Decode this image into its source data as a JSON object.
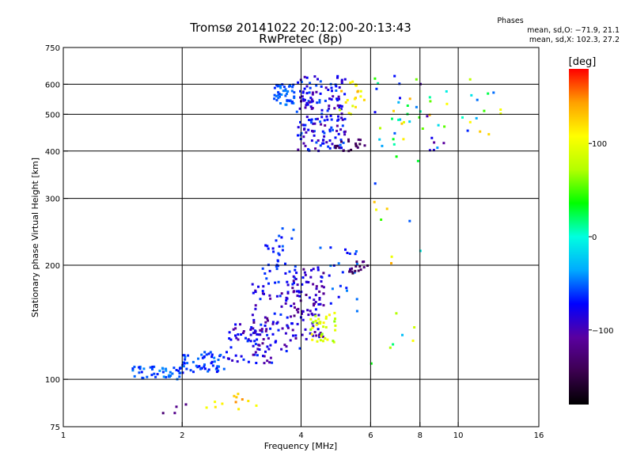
{
  "title_line1": "Tromsø 20141022 20:12:00-20:13:43",
  "title_line2": "RwPretec (8p)",
  "phase_header": "Phases",
  "phase_o": "mean, sd,O: −71.9, 21.1",
  "phase_x": "mean, sd,X: 102.3, 27.2",
  "colorbar": {
    "label": "[deg]",
    "range": [
      -180,
      180
    ],
    "ticks": [
      {
        "value": 100,
        "label": "100"
      },
      {
        "value": 0,
        "label": "0"
      },
      {
        "value": -100,
        "label": "−100"
      }
    ],
    "colors": [
      "#000000",
      "#3c0050",
      "#5a00a0",
      "#0000ff",
      "#00aaff",
      "#00ffe0",
      "#00ff00",
      "#b4ff00",
      "#ffff00",
      "#ffa000",
      "#ff0000"
    ]
  },
  "chart_data": {
    "type": "scatter",
    "xlabel": "Frequency [MHz]",
    "ylabel": "Stationary phase Virtual Height [km]",
    "xscale": "log",
    "yscale": "log",
    "xlim": [
      1,
      16
    ],
    "ylim": [
      75,
      750
    ],
    "xticks": [
      {
        "value": 1,
        "label": "1"
      },
      {
        "value": 2,
        "label": "2"
      },
      {
        "value": 4,
        "label": "4"
      },
      {
        "value": 6,
        "label": "6"
      },
      {
        "value": 8,
        "label": "8"
      },
      {
        "value": 10,
        "label": "10"
      },
      {
        "value": 16,
        "label": "16"
      }
    ],
    "yticks": [
      {
        "value": 75,
        "label": "75"
      },
      {
        "value": 100,
        "label": "100"
      },
      {
        "value": 200,
        "label": "200"
      },
      {
        "value": 300,
        "label": "300"
      },
      {
        "value": 400,
        "label": "400"
      },
      {
        "value": 500,
        "label": "500"
      },
      {
        "value": 600,
        "label": "600"
      },
      {
        "value": 750,
        "label": "750"
      }
    ],
    "grid_x": [
      2,
      4,
      6,
      8,
      10
    ],
    "grid_y": [
      100,
      200,
      300,
      400,
      500,
      600
    ],
    "color_by": "phase [deg]",
    "clusters": [
      {
        "f_range": [
          1.5,
          2.0
        ],
        "h_range": [
          100,
          108
        ],
        "phase_range": [
          -70,
          -40
        ],
        "count": 45
      },
      {
        "f_range": [
          2.0,
          2.6
        ],
        "h_range": [
          104,
          118
        ],
        "phase_range": [
          -75,
          -45
        ],
        "count": 55
      },
      {
        "f_range": [
          2.6,
          3.4
        ],
        "h_range": [
          110,
          140
        ],
        "phase_range": [
          -110,
          -60
        ],
        "count": 60
      },
      {
        "f_range": [
          3.0,
          4.0
        ],
        "h_range": [
          118,
          180
        ],
        "phase_range": [
          -120,
          -60
        ],
        "count": 90
      },
      {
        "f_range": [
          3.2,
          3.9
        ],
        "h_range": [
          180,
          250
        ],
        "phase_range": [
          -80,
          -50
        ],
        "count": 35
      },
      {
        "f_range": [
          3.8,
          4.6
        ],
        "h_range": [
          125,
          200
        ],
        "phase_range": [
          -125,
          -70
        ],
        "count": 80
      },
      {
        "f_range": [
          4.2,
          4.9
        ],
        "h_range": [
          125,
          150
        ],
        "phase_range": [
          60,
          115
        ],
        "count": 35
      },
      {
        "f_range": [
          4.4,
          5.6
        ],
        "h_range": [
          150,
          230
        ],
        "phase_range": [
          -80,
          -40
        ],
        "count": 25
      },
      {
        "f_range": [
          5.3,
          5.9
        ],
        "h_range": [
          190,
          205
        ],
        "phase_range": [
          -150,
          -120
        ],
        "count": 15
      },
      {
        "f_range": [
          3.4,
          3.85
        ],
        "h_range": [
          530,
          600
        ],
        "phase_range": [
          -65,
          -40
        ],
        "count": 45
      },
      {
        "f_range": [
          3.9,
          5.2
        ],
        "h_range": [
          400,
          630
        ],
        "phase_range": [
          -110,
          -50
        ],
        "count": 170
      },
      {
        "f_range": [
          4.8,
          5.8
        ],
        "h_range": [
          400,
          430
        ],
        "phase_range": [
          -150,
          -120
        ],
        "count": 20
      },
      {
        "f_range": [
          5.0,
          5.8
        ],
        "h_range": [
          500,
          630
        ],
        "phase_range": [
          80,
          140
        ],
        "count": 20
      },
      {
        "f_range": [
          6.0,
          9.5
        ],
        "h_range": [
          400,
          640
        ],
        "phase_range": [
          -120,
          140
        ],
        "count": 45
      },
      {
        "f_range": [
          6.0,
          8.6
        ],
        "h_range": [
          100,
          390
        ],
        "phase_range": [
          -100,
          140
        ],
        "count": 18
      },
      {
        "f_range": [
          10.0,
          13.0
        ],
        "h_range": [
          380,
          650
        ],
        "phase_range": [
          -100,
          150
        ],
        "count": 14
      },
      {
        "f_range": [
          2.3,
          3.2
        ],
        "h_range": [
          82,
          92
        ],
        "phase_range": [
          100,
          150
        ],
        "count": 12
      },
      {
        "f_range": [
          1.6,
          2.2
        ],
        "h_range": [
          80,
          90
        ],
        "phase_range": [
          -140,
          -110
        ],
        "count": 4
      }
    ]
  }
}
